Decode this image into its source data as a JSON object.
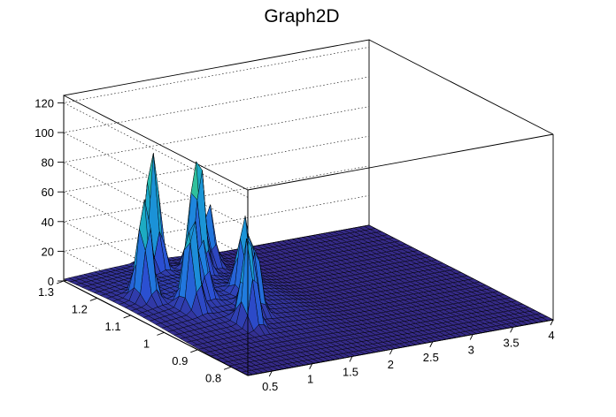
{
  "chart_data": {
    "type": "surface",
    "title": "Graph2D",
    "xlim": [
      0.2,
      4.0
    ],
    "ylim": [
      0.75,
      1.3
    ],
    "zlim": [
      0,
      125
    ],
    "x_ticks": [
      "0.5",
      "1",
      "1.5",
      "2",
      "2.5",
      "3",
      "3.5",
      "4"
    ],
    "x_tick_values": [
      0.5,
      1,
      1.5,
      2,
      2.5,
      3,
      3.5,
      4
    ],
    "y_ticks": [
      "0.8",
      "0.9",
      "1",
      "1.1",
      "1.2",
      "1.3"
    ],
    "y_tick_values": [
      0.8,
      0.9,
      1.0,
      1.1,
      1.2,
      1.3
    ],
    "z_ticks": [
      "0",
      "20",
      "40",
      "60",
      "80",
      "100",
      "120"
    ],
    "z_tick_values": [
      0,
      20,
      40,
      60,
      80,
      100,
      120
    ],
    "grid": true,
    "palette": [
      "#352a87",
      "#2b4fd1",
      "#1f7fe0",
      "#18a3cf",
      "#2bbfa0",
      "#7fca62",
      "#d7bd3a",
      "#fbe723"
    ],
    "peaks": [
      {
        "x": 0.5,
        "y": 1.13,
        "z": 72
      },
      {
        "x": 0.75,
        "y": 1.05,
        "z": 68
      },
      {
        "x": 1.05,
        "y": 0.95,
        "z": 65
      },
      {
        "x": 1.3,
        "y": 1.0,
        "z": 58
      },
      {
        "x": 1.0,
        "y": 1.08,
        "z": 40
      },
      {
        "x": 1.1,
        "y": 1.25,
        "z": 85
      },
      {
        "x": 1.45,
        "y": 1.2,
        "z": 88
      },
      {
        "x": 1.45,
        "y": 1.06,
        "z": 55
      },
      {
        "x": 1.7,
        "y": 1.23,
        "z": 45
      },
      {
        "x": 1.9,
        "y": 1.28,
        "z": 30
      }
    ]
  }
}
